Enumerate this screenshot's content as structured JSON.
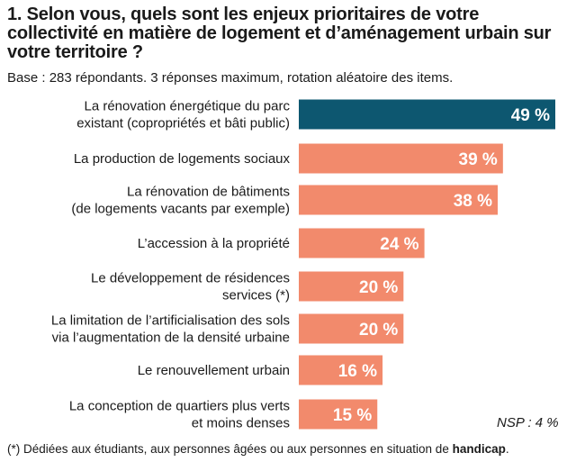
{
  "header": {
    "title": "1. Selon vous, quels sont les enjeux prioritaires de votre collectivité en matière de logement et d’aménagement urbain sur votre territoire ?",
    "base": "Base : 283 répondants. 3 réponses maximum, rotation aléatoire des items."
  },
  "nsp": "NSP : 4 %",
  "footnote": {
    "text": "(*) Dédiées aux étudiants, aux personnes âgées ou aux personnes en situation de ",
    "bold": "handicap",
    "end": "."
  },
  "colors": {
    "highlight": "#0d5770",
    "default": "#f28a6c",
    "label_text": "#ffffff"
  },
  "chart_data": {
    "type": "bar",
    "orientation": "horizontal",
    "title": "Selon vous, quels sont les enjeux prioritaires de votre collectivité en matière de logement et d’aménagement urbain sur votre territoire ?",
    "unit": "%",
    "xlim": [
      0,
      49
    ],
    "categories": [
      [
        "La rénovation énergétique du parc",
        "existant (copropriétés et bâti public)"
      ],
      [
        "La production de logements sociaux"
      ],
      [
        "La rénovation de bâtiments",
        "(de logements vacants par exemple)"
      ],
      [
        "L’accession à la propriété"
      ],
      [
        "Le développement de résidences",
        "services (*)"
      ],
      [
        "La limitation de l’artificialisation des sols",
        "via l’augmentation de la densité urbaine"
      ],
      [
        "Le renouvellement urbain"
      ],
      [
        "La conception de quartiers plus verts",
        "et moins denses"
      ]
    ],
    "values": [
      49,
      39,
      38,
      24,
      20,
      20,
      16,
      15
    ],
    "value_labels": [
      "49 %",
      "39 %",
      "38 %",
      "24 %",
      "20 %",
      "20 %",
      "16 %",
      "15 %"
    ],
    "highlight_index": 0
  }
}
